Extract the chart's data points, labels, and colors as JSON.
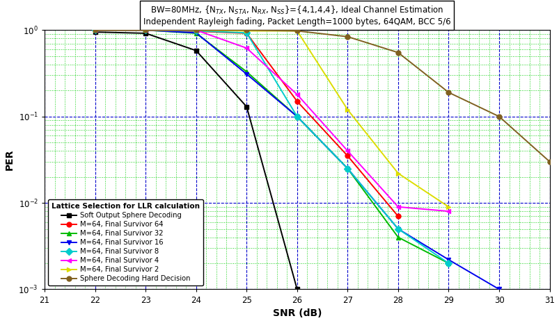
{
  "xlabel": "SNR (dB)",
  "ylabel": "PER",
  "xlim": [
    21,
    31
  ],
  "legend_title": "Lattice Selection for LLR calculation",
  "series": [
    {
      "label": "Soft Output Sphere Decoding",
      "color": "#000000",
      "marker": "s",
      "markersize": 5,
      "snr": [
        22,
        23,
        24,
        25,
        26
      ],
      "per": [
        0.95,
        0.92,
        0.58,
        0.13,
        0.001
      ]
    },
    {
      "label": "M=64, Final Survivor 64",
      "color": "#ff0000",
      "marker": "o",
      "markersize": 5,
      "snr": [
        22,
        23,
        24,
        25,
        26,
        27,
        28
      ],
      "per": [
        1.0,
        1.0,
        0.97,
        0.92,
        0.15,
        0.035,
        0.007
      ]
    },
    {
      "label": "M=64, Final Survivor 32",
      "color": "#00bb00",
      "marker": "^",
      "markersize": 5,
      "snr": [
        22,
        23,
        24,
        25,
        26,
        27,
        28,
        29
      ],
      "per": [
        1.0,
        1.0,
        0.92,
        0.33,
        0.1,
        0.025,
        0.004,
        0.002
      ]
    },
    {
      "label": "M=64, Final Survivor 16",
      "color": "#0000ee",
      "marker": "v",
      "markersize": 5,
      "snr": [
        22,
        23,
        24,
        25,
        26,
        27,
        28,
        29,
        30
      ],
      "per": [
        1.0,
        1.0,
        0.93,
        0.31,
        0.1,
        0.025,
        0.005,
        0.0022,
        0.001
      ]
    },
    {
      "label": "M=64, Final Survivor 8",
      "color": "#00cccc",
      "marker": "D",
      "markersize": 5,
      "snr": [
        22,
        23,
        24,
        25,
        26,
        27,
        28,
        29
      ],
      "per": [
        1.0,
        1.0,
        0.98,
        0.93,
        0.1,
        0.025,
        0.005,
        0.002
      ]
    },
    {
      "label": "M=64, Final Survivor 4",
      "color": "#ff00ff",
      "marker": "<",
      "markersize": 5,
      "snr": [
        22,
        23,
        24,
        25,
        26,
        27,
        28,
        29
      ],
      "per": [
        1.0,
        1.0,
        1.0,
        0.62,
        0.18,
        0.04,
        0.009,
        0.008
      ]
    },
    {
      "label": "M=64, Final Survivor 2",
      "color": "#dddd00",
      "marker": ">",
      "markersize": 5,
      "snr": [
        22,
        23,
        24,
        25,
        26,
        27,
        28,
        29
      ],
      "per": [
        1.0,
        1.0,
        1.0,
        0.98,
        0.98,
        0.12,
        0.022,
        0.009
      ]
    },
    {
      "label": "Sphere Decoding Hard Decision",
      "color": "#806020",
      "marker": "o",
      "markersize": 5,
      "snr": [
        22,
        23,
        24,
        25,
        26,
        27,
        28,
        29,
        30,
        31
      ],
      "per": [
        1.0,
        1.0,
        1.0,
        1.0,
        0.98,
        0.84,
        0.55,
        0.19,
        0.1,
        0.03
      ]
    }
  ],
  "bg_color": "#ffffff",
  "watermark_color": "#c8d8e8"
}
